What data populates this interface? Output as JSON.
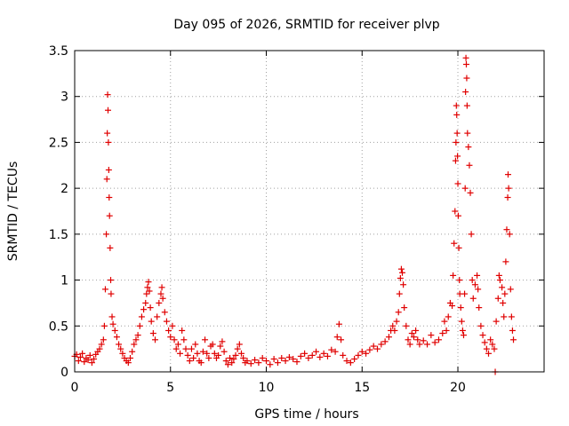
{
  "chart_data": {
    "type": "scatter",
    "title": "Day 095 of 2026, SRMTID for receiver plvp",
    "xlabel": "GPS time / hours",
    "ylabel": "SRMTID / TECUs",
    "xlim": [
      0,
      24.5
    ],
    "ylim": [
      0,
      3.5
    ],
    "x_ticks": [
      0,
      5,
      10,
      15,
      20
    ],
    "x_tick_labels": [
      "0",
      "5",
      "10",
      "15",
      "20"
    ],
    "y_ticks": [
      0,
      0.5,
      1,
      1.5,
      2,
      2.5,
      3,
      3.5
    ],
    "y_tick_labels": [
      "0",
      "0.5",
      "1",
      "1.5",
      "2",
      "2.5",
      "3",
      "3.5"
    ],
    "grid": true,
    "marker": "+",
    "marker_color": "#e00000",
    "series": [
      {
        "name": "SRMTID",
        "points": [
          [
            0.0,
            0.17
          ],
          [
            0.1,
            0.19
          ],
          [
            0.2,
            0.12
          ],
          [
            0.3,
            0.16
          ],
          [
            0.4,
            0.2
          ],
          [
            0.5,
            0.11
          ],
          [
            0.6,
            0.15
          ],
          [
            0.7,
            0.13
          ],
          [
            0.8,
            0.18
          ],
          [
            0.9,
            0.1
          ],
          [
            1.0,
            0.14
          ],
          [
            1.1,
            0.19
          ],
          [
            1.2,
            0.22
          ],
          [
            1.3,
            0.25
          ],
          [
            1.4,
            0.3
          ],
          [
            1.5,
            0.35
          ],
          [
            1.55,
            0.5
          ],
          [
            1.6,
            0.9
          ],
          [
            1.65,
            1.5
          ],
          [
            1.68,
            2.1
          ],
          [
            1.7,
            2.6
          ],
          [
            1.72,
            3.02
          ],
          [
            1.74,
            2.85
          ],
          [
            1.76,
            2.5
          ],
          [
            1.78,
            2.2
          ],
          [
            1.8,
            1.9
          ],
          [
            1.82,
            1.7
          ],
          [
            1.85,
            1.35
          ],
          [
            1.88,
            1.0
          ],
          [
            1.9,
            0.85
          ],
          [
            1.95,
            0.6
          ],
          [
            2.0,
            0.52
          ],
          [
            2.1,
            0.45
          ],
          [
            2.2,
            0.38
          ],
          [
            2.3,
            0.3
          ],
          [
            2.4,
            0.25
          ],
          [
            2.5,
            0.2
          ],
          [
            2.6,
            0.15
          ],
          [
            2.7,
            0.12
          ],
          [
            2.8,
            0.1
          ],
          [
            2.9,
            0.15
          ],
          [
            3.0,
            0.22
          ],
          [
            3.1,
            0.3
          ],
          [
            3.2,
            0.35
          ],
          [
            3.3,
            0.4
          ],
          [
            3.4,
            0.5
          ],
          [
            3.5,
            0.6
          ],
          [
            3.6,
            0.68
          ],
          [
            3.7,
            0.75
          ],
          [
            3.75,
            0.85
          ],
          [
            3.8,
            0.92
          ],
          [
            3.85,
            0.98
          ],
          [
            3.9,
            0.88
          ],
          [
            3.95,
            0.7
          ],
          [
            4.0,
            0.55
          ],
          [
            4.1,
            0.42
          ],
          [
            4.2,
            0.35
          ],
          [
            4.3,
            0.6
          ],
          [
            4.4,
            0.75
          ],
          [
            4.5,
            0.85
          ],
          [
            4.55,
            0.92
          ],
          [
            4.6,
            0.8
          ],
          [
            4.7,
            0.65
          ],
          [
            4.8,
            0.55
          ],
          [
            4.9,
            0.45
          ],
          [
            5.0,
            0.38
          ],
          [
            5.1,
            0.5
          ],
          [
            5.2,
            0.35
          ],
          [
            5.3,
            0.25
          ],
          [
            5.4,
            0.3
          ],
          [
            5.5,
            0.2
          ],
          [
            5.6,
            0.45
          ],
          [
            5.7,
            0.35
          ],
          [
            5.8,
            0.25
          ],
          [
            5.9,
            0.18
          ],
          [
            6.0,
            0.12
          ],
          [
            6.1,
            0.25
          ],
          [
            6.2,
            0.15
          ],
          [
            6.3,
            0.3
          ],
          [
            6.4,
            0.2
          ],
          [
            6.5,
            0.12
          ],
          [
            6.6,
            0.1
          ],
          [
            6.7,
            0.22
          ],
          [
            6.8,
            0.35
          ],
          [
            6.9,
            0.2
          ],
          [
            7.0,
            0.15
          ],
          [
            7.1,
            0.28
          ],
          [
            7.2,
            0.3
          ],
          [
            7.3,
            0.2
          ],
          [
            7.4,
            0.15
          ],
          [
            7.5,
            0.18
          ],
          [
            7.6,
            0.28
          ],
          [
            7.7,
            0.33
          ],
          [
            7.8,
            0.22
          ],
          [
            7.9,
            0.12
          ],
          [
            8.0,
            0.08
          ],
          [
            8.1,
            0.15
          ],
          [
            8.2,
            0.1
          ],
          [
            8.3,
            0.14
          ],
          [
            8.4,
            0.18
          ],
          [
            8.5,
            0.25
          ],
          [
            8.6,
            0.3
          ],
          [
            8.7,
            0.2
          ],
          [
            8.8,
            0.15
          ],
          [
            8.9,
            0.1
          ],
          [
            9.0,
            0.12
          ],
          [
            9.2,
            0.09
          ],
          [
            9.4,
            0.13
          ],
          [
            9.6,
            0.1
          ],
          [
            9.8,
            0.15
          ],
          [
            10.0,
            0.12
          ],
          [
            10.2,
            0.08
          ],
          [
            10.4,
            0.14
          ],
          [
            10.6,
            0.1
          ],
          [
            10.8,
            0.15
          ],
          [
            11.0,
            0.12
          ],
          [
            11.2,
            0.16
          ],
          [
            11.4,
            0.14
          ],
          [
            11.6,
            0.11
          ],
          [
            11.8,
            0.17
          ],
          [
            12.0,
            0.2
          ],
          [
            12.2,
            0.15
          ],
          [
            12.4,
            0.18
          ],
          [
            12.6,
            0.22
          ],
          [
            12.8,
            0.16
          ],
          [
            13.0,
            0.2
          ],
          [
            13.2,
            0.17
          ],
          [
            13.4,
            0.24
          ],
          [
            13.6,
            0.22
          ],
          [
            13.7,
            0.38
          ],
          [
            13.8,
            0.52
          ],
          [
            13.9,
            0.35
          ],
          [
            14.0,
            0.18
          ],
          [
            14.2,
            0.12
          ],
          [
            14.4,
            0.1
          ],
          [
            14.6,
            0.14
          ],
          [
            14.8,
            0.18
          ],
          [
            15.0,
            0.22
          ],
          [
            15.2,
            0.2
          ],
          [
            15.4,
            0.24
          ],
          [
            15.6,
            0.28
          ],
          [
            15.8,
            0.25
          ],
          [
            16.0,
            0.3
          ],
          [
            16.2,
            0.33
          ],
          [
            16.4,
            0.38
          ],
          [
            16.5,
            0.45
          ],
          [
            16.6,
            0.5
          ],
          [
            16.7,
            0.45
          ],
          [
            16.8,
            0.55
          ],
          [
            16.9,
            0.65
          ],
          [
            16.95,
            0.85
          ],
          [
            17.0,
            1.02
          ],
          [
            17.05,
            1.12
          ],
          [
            17.1,
            1.08
          ],
          [
            17.15,
            0.95
          ],
          [
            17.2,
            0.7
          ],
          [
            17.3,
            0.5
          ],
          [
            17.4,
            0.35
          ],
          [
            17.5,
            0.3
          ],
          [
            17.6,
            0.42
          ],
          [
            17.7,
            0.38
          ],
          [
            17.8,
            0.45
          ],
          [
            17.9,
            0.35
          ],
          [
            18.0,
            0.3
          ],
          [
            18.2,
            0.34
          ],
          [
            18.4,
            0.3
          ],
          [
            18.6,
            0.4
          ],
          [
            18.8,
            0.32
          ],
          [
            19.0,
            0.35
          ],
          [
            19.2,
            0.42
          ],
          [
            19.3,
            0.55
          ],
          [
            19.4,
            0.45
          ],
          [
            19.5,
            0.6
          ],
          [
            19.6,
            0.75
          ],
          [
            19.7,
            0.72
          ],
          [
            19.75,
            1.05
          ],
          [
            19.8,
            1.4
          ],
          [
            19.85,
            1.75
          ],
          [
            19.88,
            2.3
          ],
          [
            19.9,
            2.5
          ],
          [
            19.92,
            2.9
          ],
          [
            19.94,
            2.8
          ],
          [
            19.96,
            2.6
          ],
          [
            19.98,
            2.35
          ],
          [
            20.0,
            2.05
          ],
          [
            20.02,
            1.7
          ],
          [
            20.05,
            1.35
          ],
          [
            20.08,
            1.0
          ],
          [
            20.1,
            0.85
          ],
          [
            20.15,
            0.7
          ],
          [
            20.2,
            0.55
          ],
          [
            20.25,
            0.45
          ],
          [
            20.3,
            0.4
          ],
          [
            20.35,
            0.85
          ],
          [
            20.38,
            2.0
          ],
          [
            20.4,
            3.05
          ],
          [
            20.42,
            3.42
          ],
          [
            20.44,
            3.35
          ],
          [
            20.46,
            3.2
          ],
          [
            20.48,
            2.9
          ],
          [
            20.5,
            2.6
          ],
          [
            20.55,
            2.45
          ],
          [
            20.6,
            2.25
          ],
          [
            20.65,
            1.95
          ],
          [
            20.7,
            1.5
          ],
          [
            20.75,
            1.0
          ],
          [
            20.8,
            0.8
          ],
          [
            20.9,
            0.95
          ],
          [
            21.0,
            1.05
          ],
          [
            21.05,
            0.9
          ],
          [
            21.1,
            0.7
          ],
          [
            21.2,
            0.5
          ],
          [
            21.3,
            0.4
          ],
          [
            21.4,
            0.32
          ],
          [
            21.5,
            0.25
          ],
          [
            21.6,
            0.2
          ],
          [
            21.7,
            0.35
          ],
          [
            21.8,
            0.3
          ],
          [
            21.9,
            0.25
          ],
          [
            21.95,
            0.0
          ],
          [
            22.0,
            0.55
          ],
          [
            22.1,
            0.8
          ],
          [
            22.15,
            1.05
          ],
          [
            22.2,
            1.0
          ],
          [
            22.3,
            0.92
          ],
          [
            22.35,
            0.75
          ],
          [
            22.4,
            0.6
          ],
          [
            22.45,
            0.85
          ],
          [
            22.5,
            1.2
          ],
          [
            22.55,
            1.55
          ],
          [
            22.6,
            1.9
          ],
          [
            22.62,
            2.15
          ],
          [
            22.65,
            2.0
          ],
          [
            22.7,
            1.5
          ],
          [
            22.75,
            0.9
          ],
          [
            22.8,
            0.6
          ],
          [
            22.85,
            0.45
          ],
          [
            22.9,
            0.35
          ]
        ]
      }
    ]
  }
}
